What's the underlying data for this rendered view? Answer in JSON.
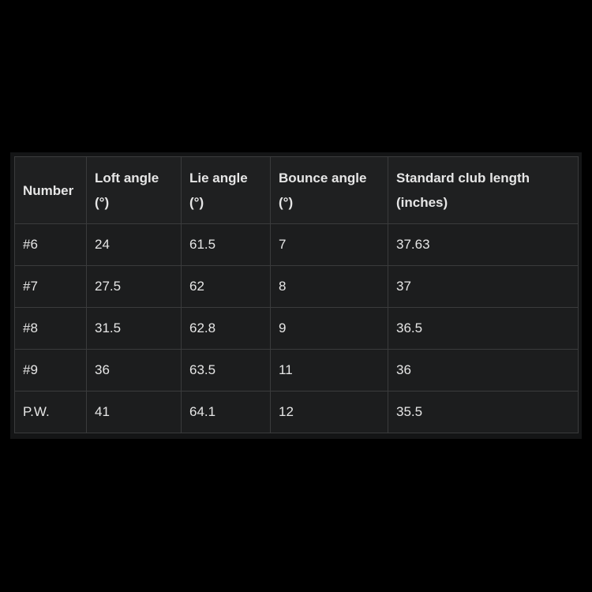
{
  "table": {
    "headers": [
      "Number",
      "Loft angle (°)",
      "Lie angle (°)",
      "Bounce angle (°)",
      "Standard club length (inches)"
    ],
    "rows": [
      [
        "#6",
        "24",
        "61.5",
        "7",
        "37.63"
      ],
      [
        "#7",
        "27.5",
        "62",
        "8",
        "37"
      ],
      [
        "#8",
        "31.5",
        "62.8",
        "9",
        "36.5"
      ],
      [
        "#9",
        "36",
        "63.5",
        "11",
        "36"
      ],
      [
        "P.W.",
        "41",
        "64.1",
        "12",
        "35.5"
      ]
    ]
  }
}
